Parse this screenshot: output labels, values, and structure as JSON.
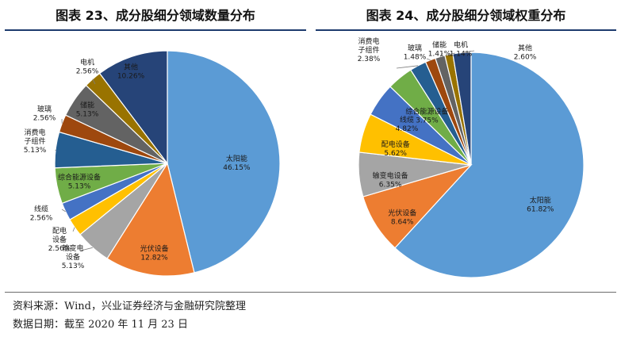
{
  "footer": {
    "source": "资料来源：Wind，兴业证券经济与金融研究院整理",
    "date": "数据日期：截至 2020 年 11 月 23 日"
  },
  "chart_data": [
    {
      "type": "pie",
      "title": "图表 23、成分股细分领域数量分布",
      "slices": [
        {
          "label": "太阳能",
          "value": 46.15,
          "value_text": "46.15%",
          "color": "#5b9bd5"
        },
        {
          "label": "光伏设备",
          "value": 12.82,
          "value_text": "12.82%",
          "color": "#ed7d31"
        },
        {
          "label": "输变电设备",
          "value": 5.13,
          "value_text": "5.13%",
          "color": "#a5a5a5"
        },
        {
          "label": "配电设备",
          "value": 2.56,
          "value_text": "2.56%",
          "color": "#ffc000"
        },
        {
          "label": "线缆",
          "value": 2.56,
          "value_text": "2.56%",
          "color": "#4472c4"
        },
        {
          "label": "综合能源设备",
          "value": 5.13,
          "value_text": "5.13%",
          "color": "#70ad47"
        },
        {
          "label": "消费电子组件",
          "value": 5.13,
          "value_text": "5.13%",
          "color": "#255e91"
        },
        {
          "label": "玻璃",
          "value": 2.56,
          "value_text": "2.56%",
          "color": "#9e480e"
        },
        {
          "label": "储能",
          "value": 5.13,
          "value_text": "5.13%",
          "color": "#636363"
        },
        {
          "label": "电机",
          "value": 2.56,
          "value_text": "2.56%",
          "color": "#997300"
        },
        {
          "label": "其他",
          "value": 10.26,
          "value_text": "10.26%",
          "color": "#264478"
        }
      ]
    },
    {
      "type": "pie",
      "title": "图表 24、成分股细分领域权重分布",
      "slices": [
        {
          "label": "太阳能",
          "value": 61.82,
          "value_text": "61.82%",
          "color": "#5b9bd5"
        },
        {
          "label": "光伏设备",
          "value": 8.64,
          "value_text": "8.64%",
          "color": "#ed7d31"
        },
        {
          "label": "输变电设备",
          "value": 6.35,
          "value_text": "6.35%",
          "color": "#a5a5a5"
        },
        {
          "label": "配电设备",
          "value": 5.62,
          "value_text": "5.62%",
          "color": "#ffc000"
        },
        {
          "label": "线缆",
          "value": 4.82,
          "value_text": "4.82%",
          "color": "#4472c4"
        },
        {
          "label": "综合能源设备",
          "value": 3.75,
          "value_text": "3.75%",
          "color": "#70ad47"
        },
        {
          "label": "消费电子组件",
          "value": 2.38,
          "value_text": "2.38%",
          "color": "#255e91"
        },
        {
          "label": "玻璃",
          "value": 1.48,
          "value_text": "1.48%",
          "color": "#9e480e"
        },
        {
          "label": "储能",
          "value": 1.41,
          "value_text": "1.41%",
          "color": "#636363"
        },
        {
          "label": "电机",
          "value": 1.14,
          "value_text": "1.14%",
          "color": "#997300"
        },
        {
          "label": "其他",
          "value": 2.6,
          "value_text": "2.60%",
          "color": "#264478"
        }
      ]
    }
  ]
}
